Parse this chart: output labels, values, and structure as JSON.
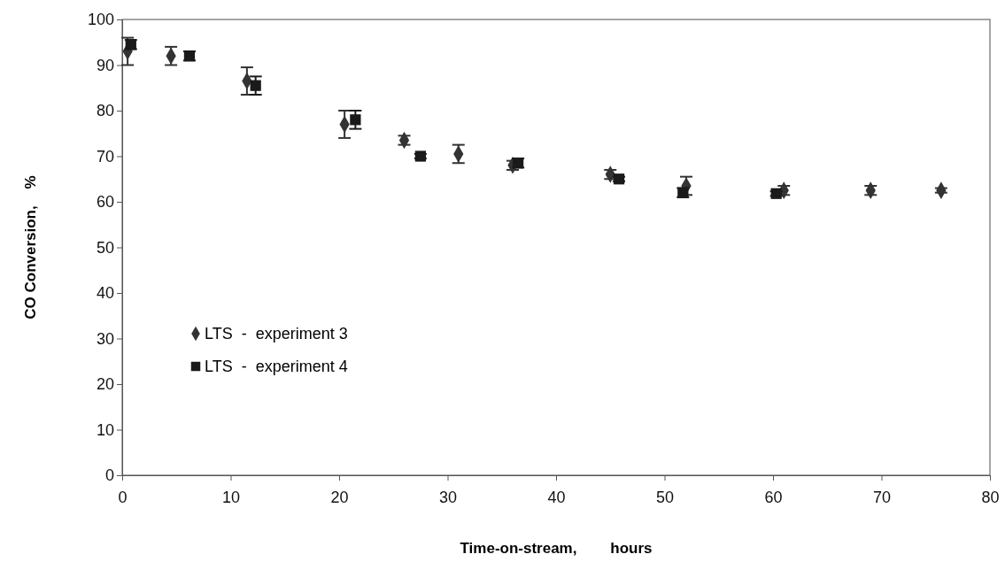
{
  "chart_data": {
    "type": "scatter",
    "xlabel": "Time-on-stream,        hours",
    "ylabel": "CO Conversion,    %",
    "xlim": [
      0,
      80
    ],
    "xticks": [
      0,
      10,
      20,
      30,
      40,
      50,
      60,
      70,
      80
    ],
    "ylim": [
      0,
      100
    ],
    "yticks": [
      0,
      10,
      20,
      30,
      40,
      50,
      60,
      70,
      80,
      90,
      100
    ],
    "legend": "bottom left",
    "grid": false,
    "series": [
      {
        "name": "LTS  -  experiment 3",
        "color": "#333333",
        "marker": "diamond",
        "x": [
          0.5,
          4.5,
          11.5,
          20.5,
          26,
          31,
          36,
          45,
          52,
          61,
          69,
          75.5
        ],
        "values": [
          93,
          92,
          86.5,
          77,
          73.5,
          70.5,
          68,
          66,
          63.5,
          62.5,
          62.5,
          62.5
        ],
        "errors": [
          3,
          2,
          3,
          3,
          1,
          2,
          1,
          1,
          2,
          1,
          1,
          0.5
        ]
      },
      {
        "name": "LTS  -  experiment 4",
        "color": "#1a1a1a",
        "marker": "square",
        "x": [
          0.8,
          6.2,
          12.3,
          21.5,
          27.5,
          36.5,
          45.8,
          51.7,
          60.3
        ],
        "values": [
          94.5,
          92,
          85.5,
          78,
          70,
          68.5,
          65,
          62,
          61.8
        ],
        "errors": [
          1,
          1,
          2,
          2,
          0.5,
          1,
          0.5,
          1,
          0.5
        ]
      }
    ]
  }
}
